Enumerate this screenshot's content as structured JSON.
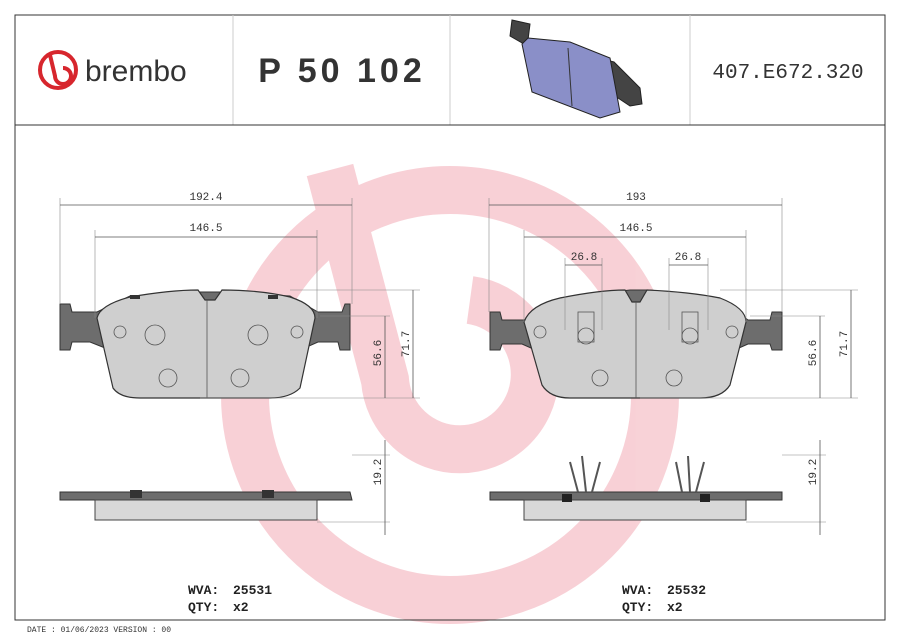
{
  "header": {
    "logo": "brembo",
    "part_number": "P 50 102",
    "code": "407.E672.320"
  },
  "left": {
    "width": "192.4",
    "inner_width": "146.5",
    "height": "56.6",
    "total_height": "71.7",
    "thickness": "19.2",
    "wva_label": "WVA:",
    "wva": "25531",
    "qty_label": "QTY:",
    "qty": "x2"
  },
  "right": {
    "width": "193",
    "inner_width": "146.5",
    "pin_left": "26.8",
    "pin_right": "26.8",
    "height": "56.6",
    "total_height": "71.7",
    "thickness": "19.2",
    "wva_label": "WVA:",
    "wva": "25532",
    "qty_label": "QTY:",
    "qty": "x2"
  },
  "footer": "DATE : 01/06/2023 VERSION : 00"
}
